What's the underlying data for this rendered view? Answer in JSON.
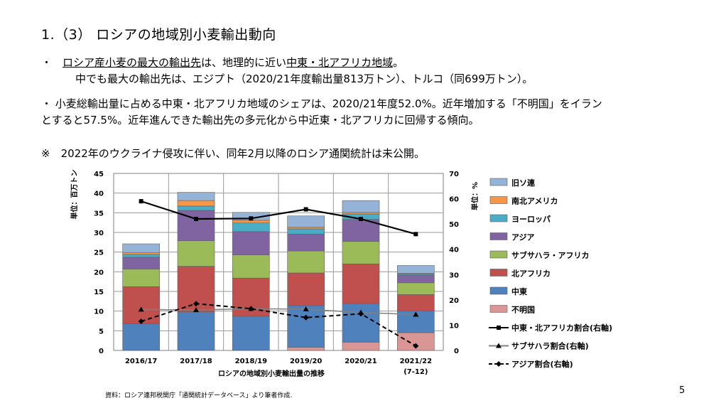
{
  "slide": {
    "title": "1.（3） ロシアの地域別小麦輸出動向",
    "bullet1_mark": "・",
    "bullet1_underlined": "ロシア産小麦の最大の輸出先",
    "bullet1_mid": "は、地理的に近い",
    "bullet1_underlined2": "中東・北アフリカ地域",
    "bullet1_end": "。",
    "bullet1_line2": "中でも最大の輸出先は、エジプト（2020/21年度輸出量813万トン）、トルコ（同699万トン）。",
    "bullet2_line1": "・ 小麦総輸出量に占める中東・北アフリカ地域のシェアは、2020/21年度52.0%。近年増加する「不明国」をイラン",
    "bullet2_line2": "とすると57.5%。近年進んできた輸出先の多元化から中近東・北アフリカに回帰する傾向。",
    "note": "※　2022年のウクライナ侵攻に伴い、同年2月以降のロシア通関統計は未公開。",
    "source": "資料：ロシア連邦税関庁「通関統計データベース」より筆者作成.",
    "page_number": "5"
  },
  "chart_data": {
    "type": "bar",
    "stacked": true,
    "title": "",
    "xlabel": "ロシアの地域別小麦輸出量の推移",
    "ylabel": "単位：百万トン",
    "y2label": "単位：%",
    "ylim": [
      0,
      45
    ],
    "y2lim": [
      0,
      70
    ],
    "yticks": [
      0,
      5,
      10,
      15,
      20,
      25,
      30,
      35,
      40,
      45
    ],
    "y2ticks": [
      0,
      10,
      20,
      30,
      40,
      50,
      60,
      70
    ],
    "categories": [
      "2016/17",
      "2017/18",
      "2018/19",
      "2019/20",
      "2020/21",
      "2021/22"
    ],
    "category_sublabels": [
      "",
      "",
      "",
      "",
      "",
      "(7-12)"
    ],
    "grid": true,
    "legend_position": "right",
    "series": [
      {
        "name": "不明国",
        "color": "#d99694",
        "values": [
          0.0,
          0.0,
          0.0,
          0.8,
          2.1,
          4.5
        ]
      },
      {
        "name": "中東",
        "color": "#4f81bd",
        "values": [
          6.8,
          9.8,
          8.7,
          10.6,
          9.8,
          5.5
        ]
      },
      {
        "name": "北アフリカ",
        "color": "#c0504d",
        "values": [
          9.4,
          11.6,
          9.7,
          8.3,
          10.1,
          4.2
        ]
      },
      {
        "name": "サブサハラ・アフリカ",
        "color": "#9bbb59",
        "values": [
          4.5,
          6.5,
          5.9,
          5.6,
          5.7,
          3.0
        ]
      },
      {
        "name": "アジア",
        "color": "#8064a2",
        "values": [
          3.0,
          7.7,
          5.9,
          4.3,
          5.6,
          2.0
        ]
      },
      {
        "name": "ヨーロッパ",
        "color": "#4bacc6",
        "values": [
          0.7,
          1.1,
          2.2,
          1.3,
          1.4,
          0.2
        ]
      },
      {
        "name": "南北アメリカ",
        "color": "#f79646",
        "values": [
          0.5,
          1.4,
          0.7,
          0.4,
          0.4,
          0.2
        ]
      },
      {
        "name": "旧ソ連",
        "color": "#95b3d7",
        "values": [
          2.2,
          2.1,
          2.0,
          2.9,
          3.0,
          2.0
        ]
      }
    ],
    "line_series": [
      {
        "name": "中東・北アフリカ割合(右軸)",
        "color": "#000000",
        "style": "solid",
        "marker": "square",
        "values": [
          59.0,
          52.0,
          52.2,
          55.8,
          52.0,
          46.0
        ]
      },
      {
        "name": "サブサハラ割合(右軸)",
        "color": "#808080",
        "style": "solid",
        "marker": "triangle",
        "values": [
          16.2,
          16.0,
          16.5,
          16.3,
          15.0,
          14.2
        ]
      },
      {
        "name": "アジア割合(右軸)",
        "color": "#000000",
        "style": "dashed",
        "marker": "diamond",
        "values": [
          11.5,
          18.5,
          16.5,
          13.0,
          14.5,
          1.8
        ]
      }
    ]
  }
}
